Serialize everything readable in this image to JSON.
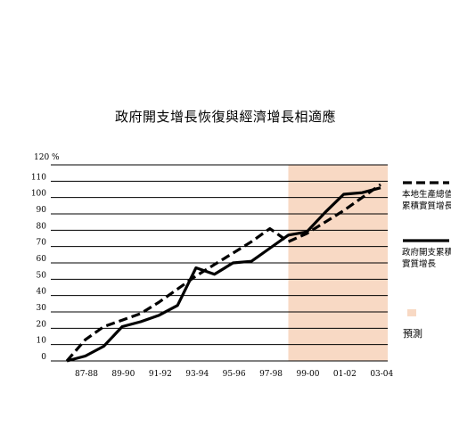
{
  "chart_data": {
    "type": "line",
    "title": "政府開支增長恢復與經濟增長相適應",
    "y_unit_label": "120 %",
    "ylim": [
      0,
      120
    ],
    "yticks": [
      0,
      10,
      20,
      30,
      40,
      50,
      60,
      70,
      80,
      90,
      100,
      110
    ],
    "x_tick_labels": [
      "87-88",
      "89-90",
      "91-92",
      "93-94",
      "95-96",
      "97-98",
      "99-00",
      "01-02",
      "03-04"
    ],
    "x_start_year": 1987,
    "x_end_year": 2004,
    "forecast_region": {
      "from_year": 1999,
      "to_year": 2004,
      "color": "#f8d9c4",
      "label": "預測"
    },
    "series": [
      {
        "name": "本地生產總值累積實質增長",
        "style": "dashed",
        "x": [
          1987,
          1988,
          1989,
          1990,
          1991,
          1992,
          1993,
          1994,
          1995,
          1996,
          1997,
          1998,
          1999,
          2000,
          2001,
          2002,
          2003,
          2004
        ],
        "values": [
          0,
          13,
          21,
          25,
          29,
          36,
          44,
          52,
          59,
          66,
          73,
          81,
          73,
          78,
          85,
          92,
          100,
          108
        ]
      },
      {
        "name": "政府開支累積實質增長",
        "style": "solid",
        "x": [
          1987,
          1988,
          1989,
          1990,
          1991,
          1992,
          1993,
          1994,
          1995,
          1996,
          1997,
          1998,
          1999,
          2000,
          2001,
          2002,
          2003,
          2004
        ],
        "values": [
          0,
          3,
          9,
          21,
          24,
          28,
          34,
          57,
          53,
          60,
          61,
          69,
          77,
          79,
          91,
          102,
          103,
          106
        ]
      }
    ],
    "colors": {
      "line": "#000000",
      "grid": "#000000",
      "forecast": "#f8d9c4"
    }
  }
}
